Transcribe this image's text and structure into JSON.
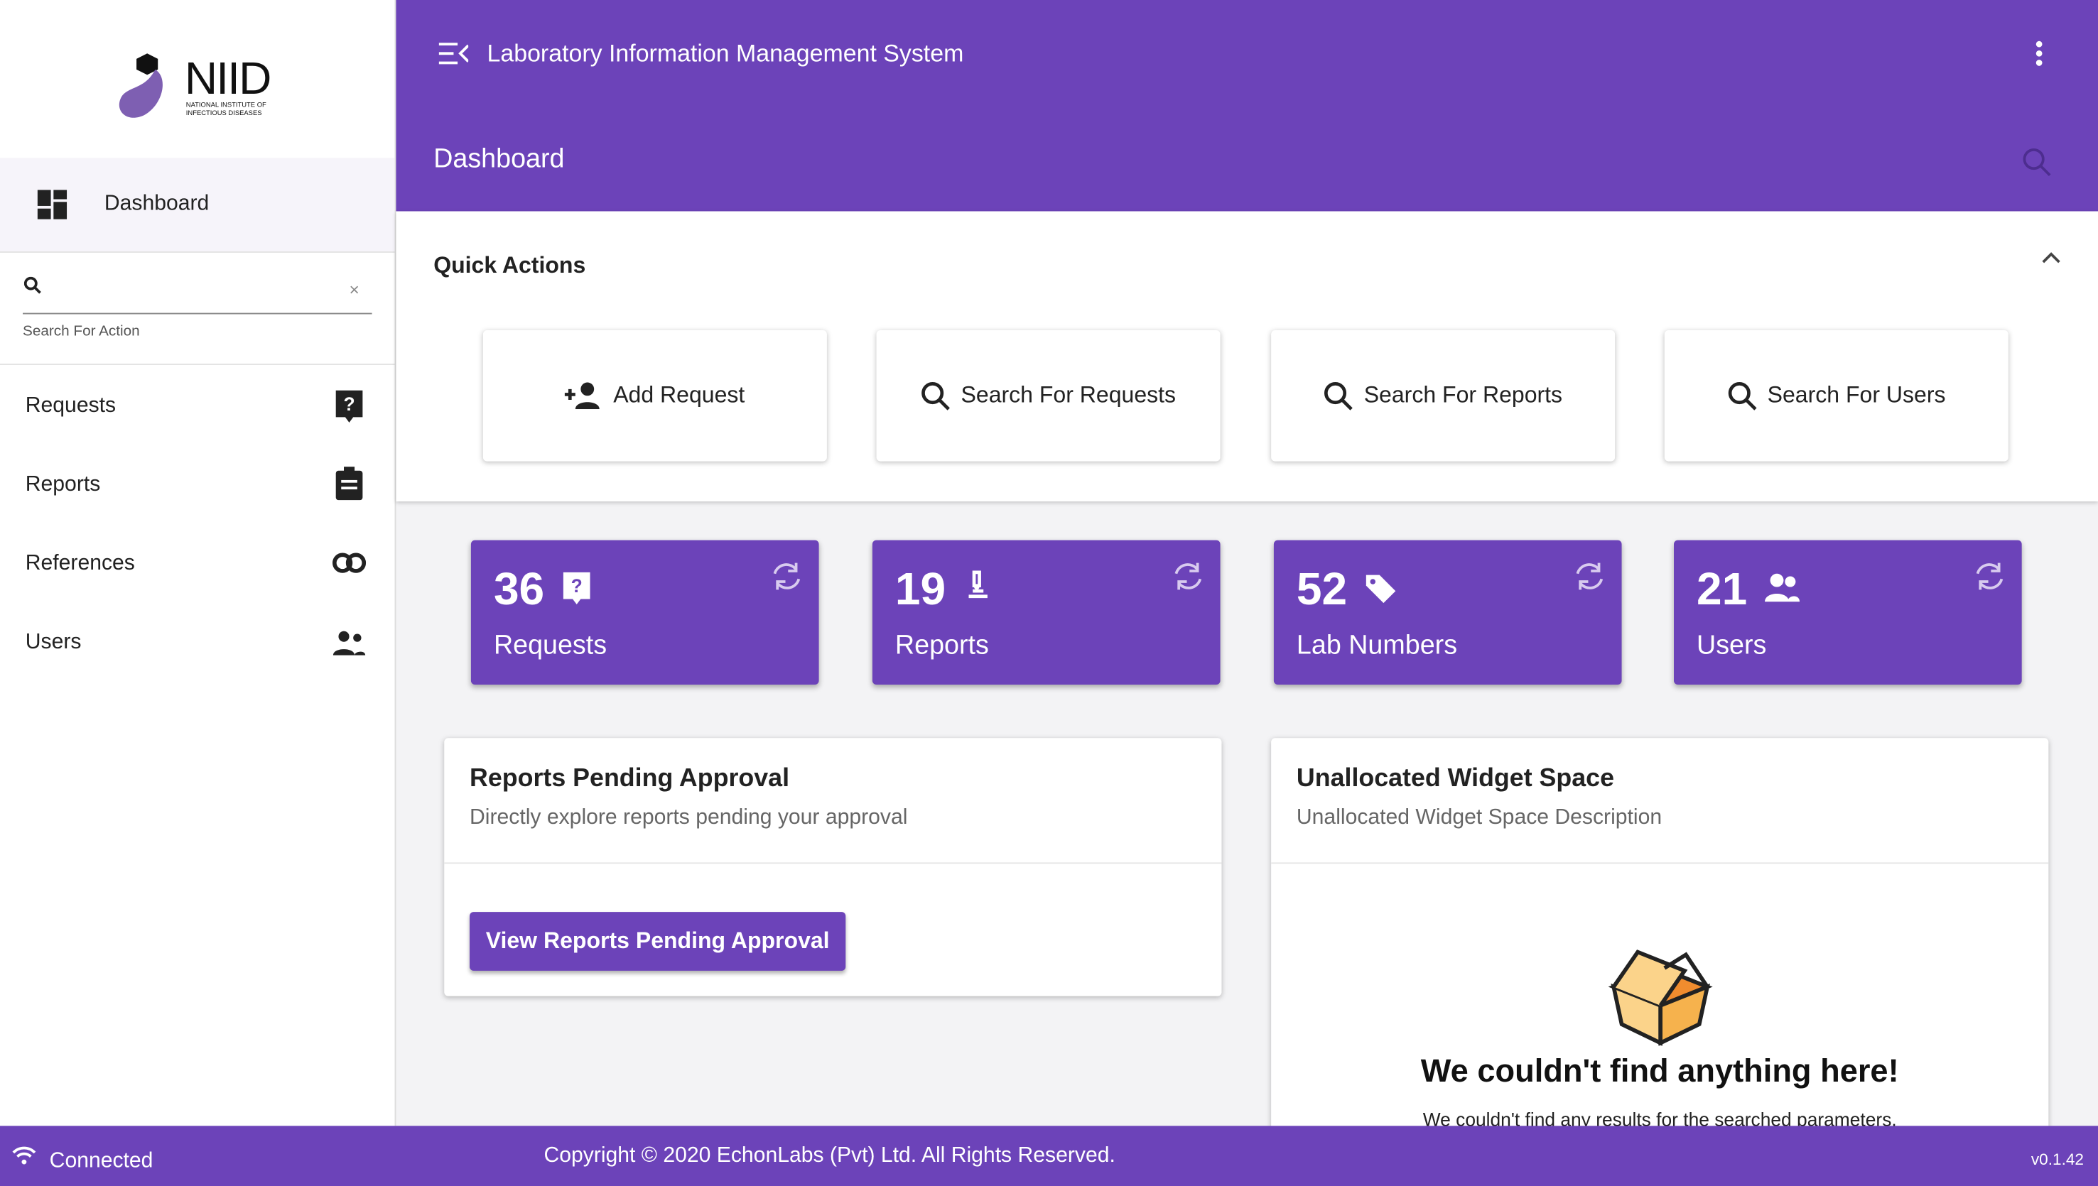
{
  "sidebar": {
    "logo": {
      "title": "NIID",
      "subtitle": "NATIONAL INSTITUTE OF INFECTIOUS DISEASES"
    },
    "active": "Dashboard",
    "search_hint": "Search For Action",
    "menu": [
      "Requests",
      "Reports",
      "References",
      "Users"
    ]
  },
  "header": {
    "title": "Laboratory Information Management System",
    "page": "Dashboard"
  },
  "quick_actions": {
    "title": "Quick Actions",
    "buttons": [
      "Add Request",
      "Search For Requests",
      "Search For Reports",
      "Search For Users"
    ]
  },
  "stats": [
    {
      "value": 36,
      "label": "Requests"
    },
    {
      "value": 19,
      "label": "Reports"
    },
    {
      "value": 52,
      "label": "Lab Numbers"
    },
    {
      "value": 21,
      "label": "Users"
    }
  ],
  "widgets": [
    {
      "title": "Reports Pending Approval",
      "description": "Directly explore reports pending your approval",
      "button": "View Reports Pending Approval"
    },
    {
      "title": "Unallocated Widget Space",
      "description": "Unallocated Widget Space Description",
      "empty_title": "We couldn't find anything here!",
      "empty_text": "We couldn't find any results for the searched parameters."
    }
  ],
  "footer": {
    "status": "Connected",
    "copyright": "Copyright © 2020 EchonLabs (Pvt) Ltd. All Rights Reserved.",
    "version": "v0.1.42"
  }
}
